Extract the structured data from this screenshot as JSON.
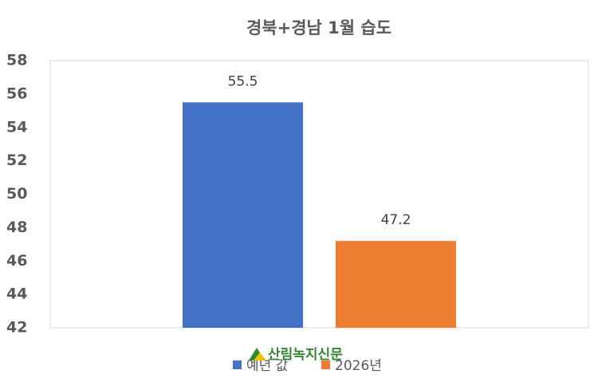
{
  "chart_data": {
    "type": "bar",
    "title": "경북+경남 1월 습도",
    "categories": [
      null
    ],
    "series": [
      {
        "name": "예년 값",
        "color": "#4472c4",
        "values": [
          55.5
        ]
      },
      {
        "name": "2026년",
        "color": "#ed7d31",
        "values": [
          47.2
        ]
      }
    ],
    "ylim": [
      42,
      58
    ],
    "yticks": [
      42,
      44,
      46,
      48,
      50,
      52,
      54,
      56,
      58
    ],
    "grid": false,
    "legend": "bottom",
    "watermark": "산림녹지신문"
  }
}
